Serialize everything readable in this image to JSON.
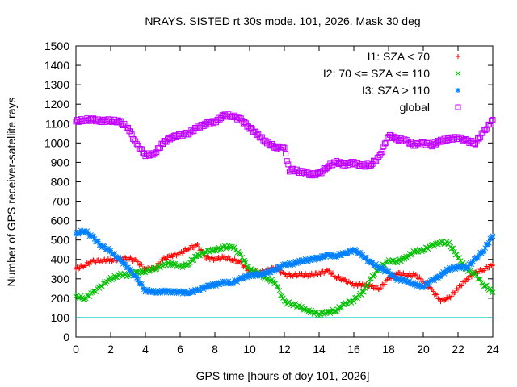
{
  "chart_data": {
    "type": "scatter",
    "title": "NRAYS. SISTED rt 30s mode. 101, 2026. Mask 30 deg",
    "xlabel": "GPS time [hours of doy 101, 2026]",
    "ylabel": "Number of GPS receiver-satellite rays",
    "xlim": [
      0,
      24
    ],
    "ylim": [
      0,
      1500
    ],
    "xticks": [
      0,
      2,
      4,
      6,
      8,
      10,
      12,
      14,
      16,
      18,
      20,
      22,
      24
    ],
    "yticks": [
      0,
      100,
      200,
      300,
      400,
      500,
      600,
      700,
      800,
      900,
      1000,
      1100,
      1200,
      1300,
      1400,
      1500
    ],
    "legend_position": "top-right",
    "reference_line": {
      "y": 100,
      "color": "#00cccc"
    },
    "series": [
      {
        "name": "I1: SZA < 70",
        "marker": "+",
        "color": "#ff0000",
        "points": [
          [
            0,
            350
          ],
          [
            0.5,
            370
          ],
          [
            1,
            390
          ],
          [
            1.5,
            395
          ],
          [
            2,
            395
          ],
          [
            2.5,
            400
          ],
          [
            3,
            410
          ],
          [
            3.5,
            390
          ],
          [
            4,
            350
          ],
          [
            4.5,
            350
          ],
          [
            5,
            400
          ],
          [
            5.5,
            420
          ],
          [
            6,
            430
          ],
          [
            6.5,
            460
          ],
          [
            7,
            470
          ],
          [
            7.5,
            410
          ],
          [
            8,
            400
          ],
          [
            8.5,
            410
          ],
          [
            9,
            400
          ],
          [
            9.5,
            380
          ],
          [
            10,
            340
          ],
          [
            10.5,
            330
          ],
          [
            11,
            340
          ],
          [
            11.5,
            360
          ],
          [
            12,
            320
          ],
          [
            12.5,
            320
          ],
          [
            13,
            320
          ],
          [
            13.5,
            320
          ],
          [
            14,
            330
          ],
          [
            14.5,
            340
          ],
          [
            15,
            310
          ],
          [
            15.5,
            290
          ],
          [
            16,
            270
          ],
          [
            16.5,
            270
          ],
          [
            17,
            260
          ],
          [
            17.5,
            250
          ],
          [
            18,
            300
          ],
          [
            18.5,
            330
          ],
          [
            19,
            320
          ],
          [
            19.5,
            320
          ],
          [
            20,
            290
          ],
          [
            20.5,
            240
          ],
          [
            21,
            190
          ],
          [
            21.5,
            200
          ],
          [
            22,
            250
          ],
          [
            22.5,
            300
          ],
          [
            23,
            330
          ],
          [
            23.5,
            350
          ],
          [
            24,
            370
          ]
        ]
      },
      {
        "name": "I2: 70 <= SZA <= 110",
        "marker": "x",
        "color": "#00c000",
        "points": [
          [
            0,
            210
          ],
          [
            0.5,
            200
          ],
          [
            1,
            230
          ],
          [
            1.5,
            270
          ],
          [
            2,
            300
          ],
          [
            2.5,
            320
          ],
          [
            3,
            320
          ],
          [
            3.5,
            330
          ],
          [
            4,
            340
          ],
          [
            4.5,
            350
          ],
          [
            5,
            370
          ],
          [
            5.5,
            380
          ],
          [
            6,
            360
          ],
          [
            6.5,
            380
          ],
          [
            7,
            420
          ],
          [
            7.5,
            440
          ],
          [
            8,
            450
          ],
          [
            8.5,
            460
          ],
          [
            9,
            470
          ],
          [
            9.5,
            420
          ],
          [
            10,
            350
          ],
          [
            10.5,
            330
          ],
          [
            11,
            300
          ],
          [
            11.5,
            280
          ],
          [
            12,
            180
          ],
          [
            12.5,
            170
          ],
          [
            13,
            150
          ],
          [
            13.5,
            130
          ],
          [
            14,
            120
          ],
          [
            14.5,
            125
          ],
          [
            15,
            140
          ],
          [
            15.5,
            170
          ],
          [
            16,
            190
          ],
          [
            16.5,
            230
          ],
          [
            17,
            300
          ],
          [
            17.5,
            360
          ],
          [
            18,
            390
          ],
          [
            18.5,
            390
          ],
          [
            19,
            410
          ],
          [
            19.5,
            440
          ],
          [
            20,
            450
          ],
          [
            20.5,
            470
          ],
          [
            21,
            490
          ],
          [
            21.5,
            480
          ],
          [
            22,
            410
          ],
          [
            22.5,
            350
          ],
          [
            23,
            320
          ],
          [
            23.5,
            270
          ],
          [
            24,
            230
          ]
        ]
      },
      {
        "name": "I3: SZA > 110",
        "marker": "*",
        "color": "#0080ff",
        "points": [
          [
            0,
            530
          ],
          [
            0.5,
            550
          ],
          [
            1,
            510
          ],
          [
            1.5,
            470
          ],
          [
            2,
            440
          ],
          [
            2.5,
            400
          ],
          [
            3,
            360
          ],
          [
            3.5,
            300
          ],
          [
            4,
            240
          ],
          [
            4.5,
            230
          ],
          [
            5,
            235
          ],
          [
            5.5,
            235
          ],
          [
            6,
            230
          ],
          [
            6.5,
            230
          ],
          [
            7,
            240
          ],
          [
            7.5,
            260
          ],
          [
            8,
            270
          ],
          [
            8.5,
            280
          ],
          [
            9,
            280
          ],
          [
            9.5,
            300
          ],
          [
            10,
            320
          ],
          [
            10.5,
            320
          ],
          [
            11,
            330
          ],
          [
            11.5,
            350
          ],
          [
            12,
            370
          ],
          [
            12.5,
            380
          ],
          [
            13,
            390
          ],
          [
            13.5,
            400
          ],
          [
            14,
            410
          ],
          [
            14.5,
            420
          ],
          [
            15,
            420
          ],
          [
            15.5,
            430
          ],
          [
            16,
            450
          ],
          [
            16.5,
            420
          ],
          [
            17,
            380
          ],
          [
            17.5,
            360
          ],
          [
            18,
            330
          ],
          [
            18.5,
            300
          ],
          [
            19,
            290
          ],
          [
            19.5,
            270
          ],
          [
            20,
            260
          ],
          [
            20.5,
            290
          ],
          [
            21,
            320
          ],
          [
            21.5,
            350
          ],
          [
            22,
            360
          ],
          [
            22.5,
            360
          ],
          [
            23,
            400
          ],
          [
            23.5,
            450
          ],
          [
            24,
            520
          ]
        ]
      },
      {
        "name": "global",
        "marker": "square",
        "color": "#c000ff",
        "points": [
          [
            0,
            1110
          ],
          [
            0.5,
            1120
          ],
          [
            1,
            1120
          ],
          [
            1.5,
            1115
          ],
          [
            2,
            1115
          ],
          [
            2.5,
            1110
          ],
          [
            3,
            1080
          ],
          [
            3.5,
            990
          ],
          [
            4,
            940
          ],
          [
            4.5,
            940
          ],
          [
            5,
            1000
          ],
          [
            5.5,
            1030
          ],
          [
            6,
            1040
          ],
          [
            6.5,
            1050
          ],
          [
            7,
            1080
          ],
          [
            7.5,
            1100
          ],
          [
            8,
            1110
          ],
          [
            8.5,
            1140
          ],
          [
            9,
            1140
          ],
          [
            9.5,
            1120
          ],
          [
            10,
            1080
          ],
          [
            10.5,
            1040
          ],
          [
            11,
            1000
          ],
          [
            11.5,
            980
          ],
          [
            12,
            970
          ],
          [
            12.3,
            860
          ],
          [
            12.5,
            860
          ],
          [
            13,
            850
          ],
          [
            13.5,
            840
          ],
          [
            14,
            840
          ],
          [
            14.5,
            880
          ],
          [
            15,
            900
          ],
          [
            15.5,
            890
          ],
          [
            16,
            900
          ],
          [
            16.5,
            880
          ],
          [
            17,
            890
          ],
          [
            17.5,
            930
          ],
          [
            18,
            1040
          ],
          [
            18.5,
            1020
          ],
          [
            19,
            1010
          ],
          [
            19.5,
            990
          ],
          [
            20,
            1000
          ],
          [
            20.5,
            990
          ],
          [
            21,
            1010
          ],
          [
            21.5,
            1020
          ],
          [
            22,
            1030
          ],
          [
            22.5,
            1010
          ],
          [
            23,
            1000
          ],
          [
            23.5,
            1060
          ],
          [
            24,
            1120
          ]
        ]
      }
    ]
  }
}
